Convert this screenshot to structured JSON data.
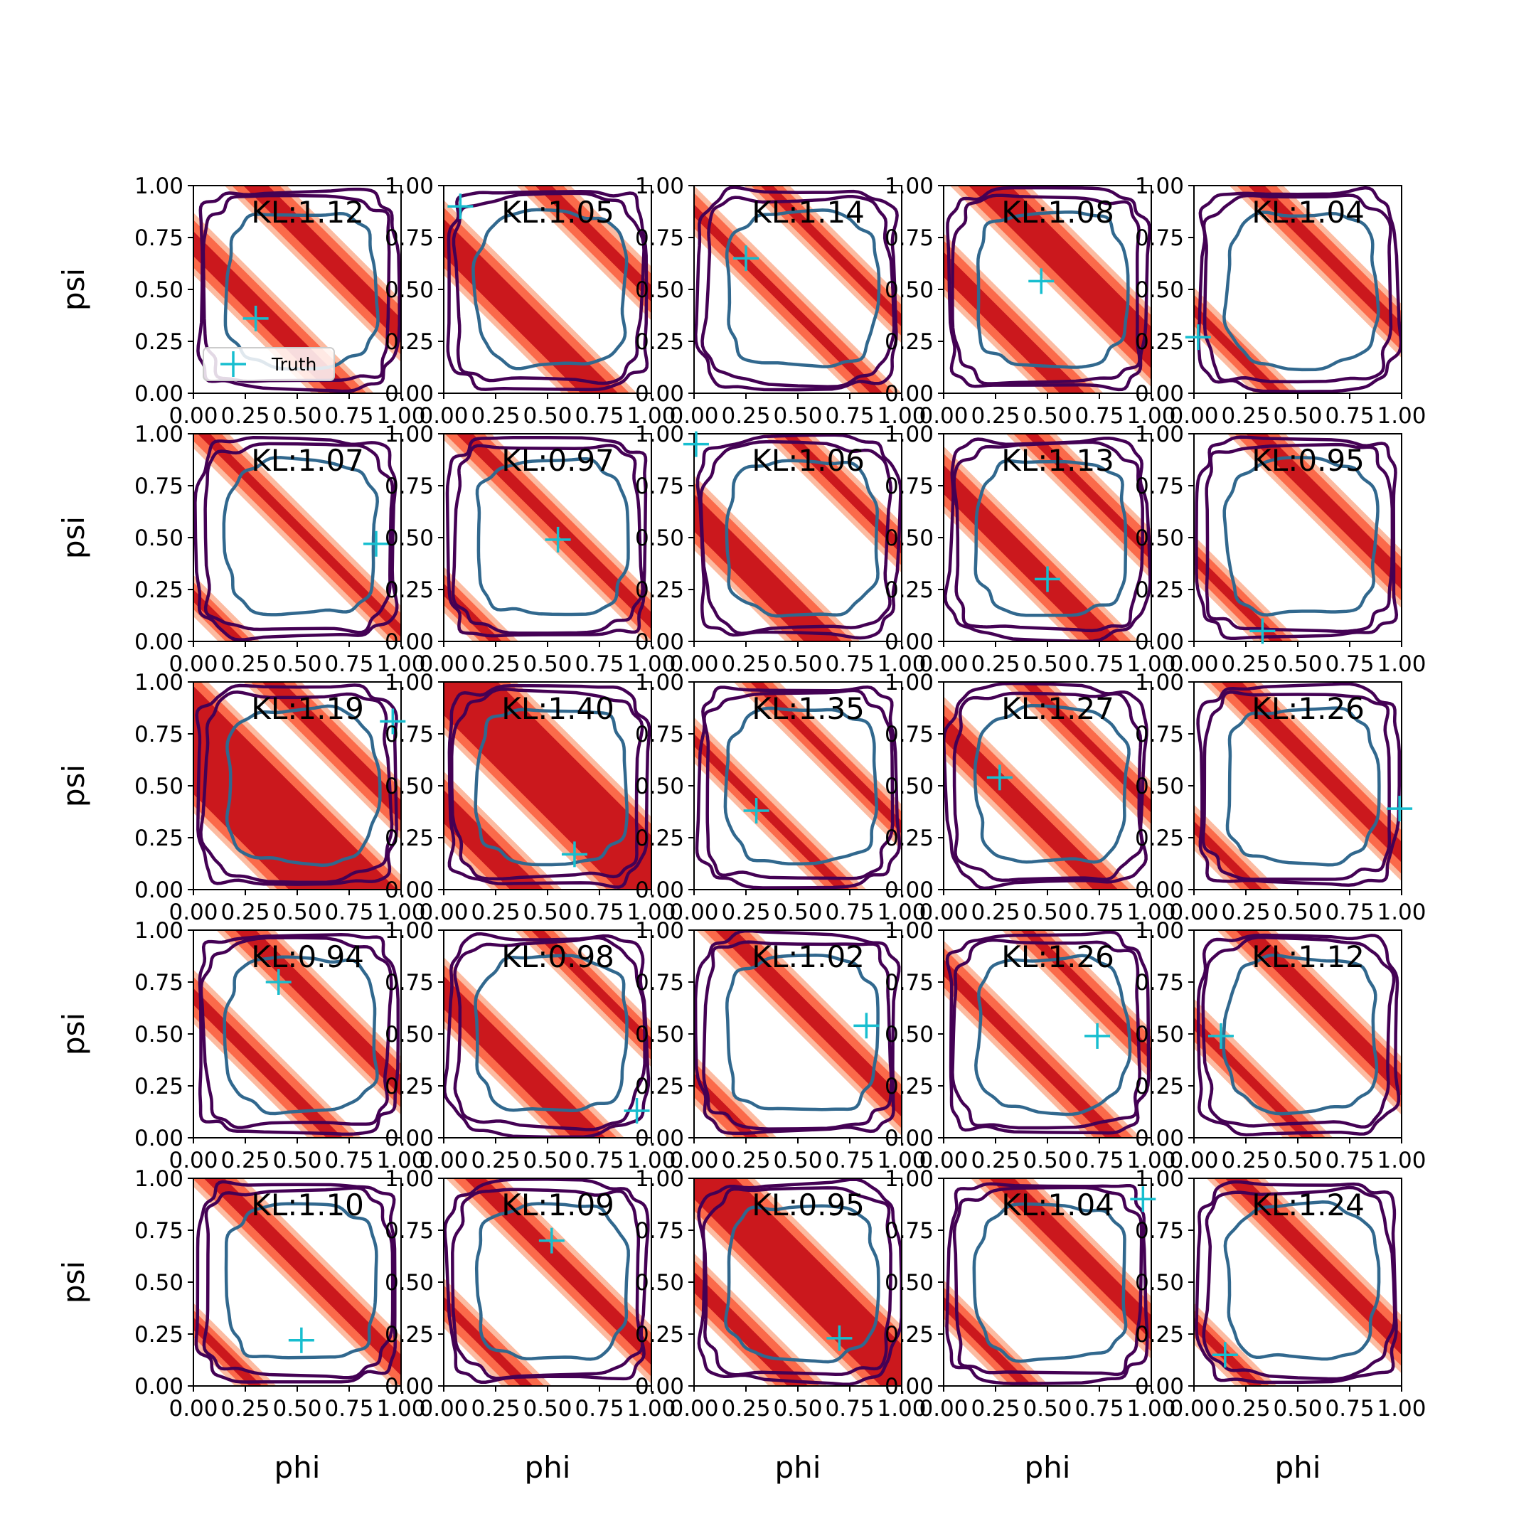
{
  "chart_data": {
    "type": "contour-grid",
    "rows": 5,
    "cols": 5,
    "xlabel": "phi",
    "ylabel": "psi",
    "xlim": [
      0,
      1
    ],
    "ylim": [
      0,
      1
    ],
    "ticks": [
      "0.00",
      "0.25",
      "0.50",
      "0.75",
      "1.00"
    ],
    "legend": {
      "label": "Truth",
      "placement": "lower-left of first panel"
    },
    "colors": {
      "truth_marker": "#17becf",
      "band_light": "#fcbba1",
      "band_mid": "#fb6a4a",
      "band_dark": "#cb181d",
      "contour_outer": "#440154",
      "contour_inner": "#31688e"
    },
    "panels": [
      {
        "kl": "KL:1.12",
        "truth": [
          0.3,
          0.36
        ],
        "bands": [
          {
            "offset": 0.72,
            "width": 0.2
          },
          {
            "offset": 1.3,
            "width": 0.2
          }
        ]
      },
      {
        "kl": "KL:1.05",
        "truth": [
          0.08,
          0.9
        ],
        "bands": [
          {
            "offset": 0.75,
            "width": 0.26
          },
          {
            "offset": 1.48,
            "width": 0.16
          }
        ]
      },
      {
        "kl": "KL:1.14",
        "truth": [
          0.25,
          0.65
        ],
        "bands": [
          {
            "offset": 0.88,
            "width": 0.14
          },
          {
            "offset": 1.35,
            "width": 0.12
          }
        ]
      },
      {
        "kl": "KL:1.08",
        "truth": [
          0.47,
          0.54
        ],
        "bands": [
          {
            "offset": 0.62,
            "width": 0.2
          },
          {
            "offset": 1.22,
            "width": 0.28
          }
        ]
      },
      {
        "kl": "KL:1.04",
        "truth": [
          0.02,
          0.27
        ],
        "bands": [
          {
            "offset": 0.4,
            "width": 0.12
          },
          {
            "offset": 1.3,
            "width": 0.16
          }
        ]
      },
      {
        "kl": "KL:1.07",
        "truth": [
          0.88,
          0.47
        ],
        "bands": [
          {
            "offset": 0.22,
            "width": 0.1
          },
          {
            "offset": 1.05,
            "width": 0.14
          }
        ]
      },
      {
        "kl": "KL:0.97",
        "truth": [
          0.55,
          0.49
        ],
        "bands": [
          {
            "offset": 0.25,
            "width": 0.12
          },
          {
            "offset": 1.1,
            "width": 0.16
          }
        ]
      },
      {
        "kl": "KL:1.06",
        "truth": [
          0.01,
          0.95
        ],
        "bands": [
          {
            "offset": 0.62,
            "width": 0.26
          },
          {
            "offset": 1.45,
            "width": 0.14
          }
        ]
      },
      {
        "kl": "KL:1.13",
        "truth": [
          0.5,
          0.3
        ],
        "bands": [
          {
            "offset": 0.78,
            "width": 0.22
          },
          {
            "offset": 1.42,
            "width": 0.14
          }
        ]
      },
      {
        "kl": "KL:0.95",
        "truth": [
          0.33,
          0.05
        ],
        "bands": [
          {
            "offset": 0.4,
            "width": 0.12
          },
          {
            "offset": 1.3,
            "width": 0.18
          }
        ]
      },
      {
        "kl": "KL:1.19",
        "truth": [
          0.96,
          0.81
        ],
        "bands": [
          {
            "offset": 0.72,
            "width": 0.6
          },
          {
            "offset": 1.38,
            "width": 0.18
          }
        ]
      },
      {
        "kl": "KL:1.40",
        "truth": [
          0.63,
          0.17
        ],
        "bands": [
          {
            "offset": 0.4,
            "width": 0.24
          },
          {
            "offset": 1.05,
            "width": 0.5
          }
        ]
      },
      {
        "kl": "KL:1.35",
        "truth": [
          0.3,
          0.38
        ],
        "bands": [
          {
            "offset": 0.72,
            "width": 0.12
          },
          {
            "offset": 1.3,
            "width": 0.12
          }
        ]
      },
      {
        "kl": "KL:1.27",
        "truth": [
          0.27,
          0.54
        ],
        "bands": [
          {
            "offset": 0.78,
            "width": 0.2
          },
          {
            "offset": 1.4,
            "width": 0.14
          }
        ]
      },
      {
        "kl": "KL:1.26",
        "truth": [
          0.99,
          0.39
        ],
        "bands": [
          {
            "offset": 0.3,
            "width": 0.12
          },
          {
            "offset": 1.18,
            "width": 0.18
          }
        ]
      },
      {
        "kl": "KL:0.94",
        "truth": [
          0.41,
          0.75
        ],
        "bands": [
          {
            "offset": 0.68,
            "width": 0.16
          },
          {
            "offset": 1.25,
            "width": 0.18
          }
        ]
      },
      {
        "kl": "KL:0.98",
        "truth": [
          0.93,
          0.13
        ],
        "bands": [
          {
            "offset": 0.7,
            "width": 0.24
          },
          {
            "offset": 1.45,
            "width": 0.12
          }
        ]
      },
      {
        "kl": "KL:1.02",
        "truth": [
          0.83,
          0.54
        ],
        "bands": [
          {
            "offset": 0.28,
            "width": 0.14
          },
          {
            "offset": 1.15,
            "width": 0.18
          }
        ]
      },
      {
        "kl": "KL:1.26",
        "truth": [
          0.74,
          0.49
        ],
        "bands": [
          {
            "offset": 0.82,
            "width": 0.16
          },
          {
            "offset": 1.4,
            "width": 0.14
          }
        ]
      },
      {
        "kl": "KL:1.12",
        "truth": [
          0.13,
          0.49
        ],
        "bands": [
          {
            "offset": 0.55,
            "width": 0.14
          },
          {
            "offset": 1.25,
            "width": 0.18
          }
        ]
      },
      {
        "kl": "KL:1.10",
        "truth": [
          0.52,
          0.22
        ],
        "bands": [
          {
            "offset": 0.3,
            "width": 0.1
          },
          {
            "offset": 1.1,
            "width": 0.18
          }
        ]
      },
      {
        "kl": "KL:1.09",
        "truth": [
          0.52,
          0.7
        ],
        "bands": [
          {
            "offset": 0.4,
            "width": 0.14
          },
          {
            "offset": 1.15,
            "width": 0.18
          }
        ]
      },
      {
        "kl": "KL:0.95",
        "truth": [
          0.7,
          0.23
        ],
        "bands": [
          {
            "offset": 0.5,
            "width": 0.18
          },
          {
            "offset": 1.05,
            "width": 0.38
          }
        ]
      },
      {
        "kl": "KL:1.04",
        "truth": [
          0.96,
          0.9
        ],
        "bands": [
          {
            "offset": 0.4,
            "width": 0.12
          },
          {
            "offset": 1.28,
            "width": 0.2
          }
        ]
      },
      {
        "kl": "KL:1.24",
        "truth": [
          0.15,
          0.15
        ],
        "bands": [
          {
            "offset": 0.3,
            "width": 0.1
          },
          {
            "offset": 1.2,
            "width": 0.18
          }
        ]
      }
    ]
  }
}
